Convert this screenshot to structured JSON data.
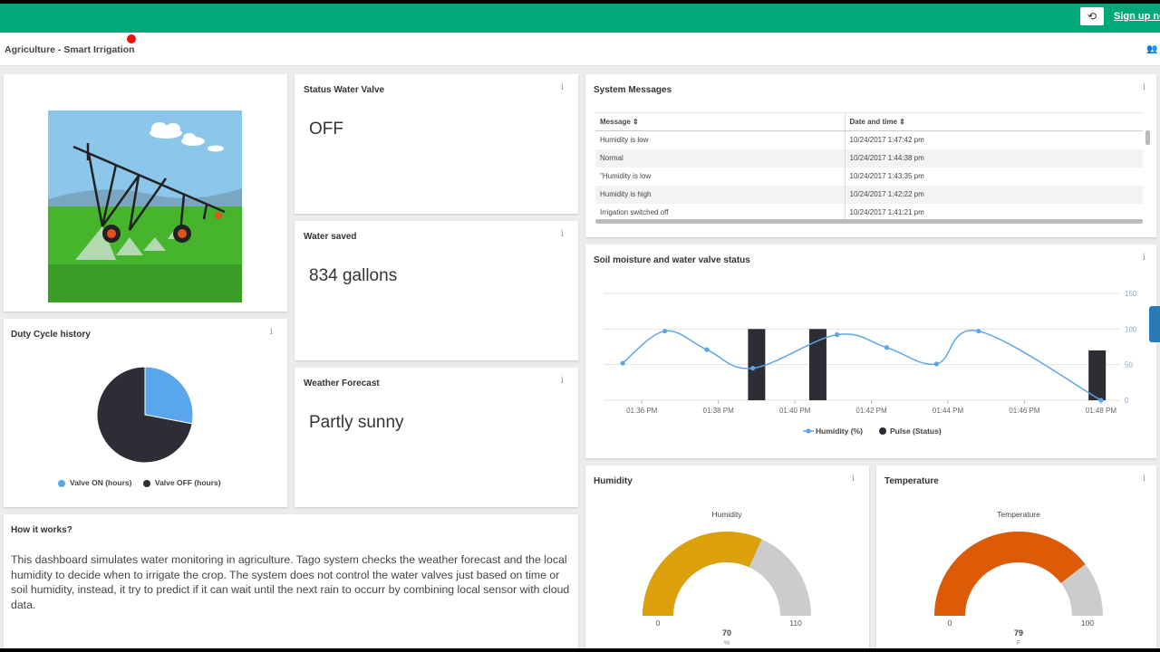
{
  "topbar": {
    "refresh_icon": "refresh-icon",
    "refresh_glyph": "⟲",
    "signup_label": "Sign up no"
  },
  "header": {
    "title": "Agriculture - Smart Irrigation",
    "users_icon": "users-icon",
    "users_glyph": "👥"
  },
  "info_glyph": "i",
  "colors": {
    "accent": "#03a878",
    "valve_on": "#5aa6ec",
    "valve_off": "#2d2d35",
    "humidity_gauge": "#dba00c",
    "temperature_gauge": "#dd5a06",
    "gauge_track": "#cccccc"
  },
  "widgets": {
    "image_card": {
      "image": "center-pivot irrigation system in a green field"
    },
    "status_valve": {
      "title": "Status Water Valve",
      "value": "OFF"
    },
    "water_saved": {
      "title": "Water saved",
      "value": "834 gallons"
    },
    "weather": {
      "title": "Weather Forecast",
      "value": "Partly sunny"
    },
    "system_messages": {
      "title": "System Messages",
      "columns": [
        "Message ⇕",
        "Date and time ⇕"
      ],
      "rows": [
        [
          "Humidity is low",
          "10/24/2017 1:47:42 pm"
        ],
        [
          "Normal",
          "10/24/2017 1:44:38 pm"
        ],
        [
          "\"Humidity is low",
          "10/24/2017 1:43:35 pm"
        ],
        [
          "Humidity is high",
          "10/24/2017 1:42:22 pm"
        ],
        [
          "Irrigation switched off",
          "10/24/2017 1:41:21 pm"
        ]
      ]
    },
    "duty_cycle": {
      "title": "Duty Cycle history",
      "legend": [
        "Valve ON (hours)",
        "Valve OFF (hours)"
      ]
    },
    "soil_chart": {
      "title": "Soil moisture and water valve status"
    },
    "how_it_works": {
      "title": "How it works?",
      "text": "This dashboard simulates water monitoring in agriculture. Tago system checks the weather forecast and the local humidity to decide when to irrigate the crop. The system does not control the water valves just based on time or soil humidity, instead, it try to predict if it can wait until the next rain to occurr by combining local sensor with cloud data."
    },
    "humidity": {
      "title": "Humidity"
    },
    "temperature": {
      "title": "Temperature"
    }
  },
  "chart_data": [
    {
      "type": "pie",
      "categories": [
        "Valve ON (hours)",
        "Valve OFF (hours)"
      ],
      "values": [
        28,
        72
      ]
    },
    {
      "type": "line",
      "title": "",
      "x_ticks": [
        "01:36 PM",
        "01:38 PM",
        "01:40 PM",
        "01:42 PM",
        "01:44 PM",
        "01:46 PM",
        "01:48 PM"
      ],
      "y_ticks": [
        "0",
        "50",
        "100",
        "150"
      ],
      "ylim": [
        0,
        150
      ],
      "x_range_minutes": [
        35,
        48.5
      ],
      "legend_position": "bottom",
      "grid": true,
      "series": [
        {
          "name": "Humidity (%)",
          "type": "spline",
          "x": [
            35.5,
            36.6,
            37.7,
            38.9,
            41.1,
            42.4,
            43.7,
            44.8,
            48
          ],
          "values": [
            52,
            97,
            71,
            45,
            92,
            74,
            51,
            97,
            0
          ]
        },
        {
          "name": "Pulse (Status)",
          "type": "column",
          "x": [
            39,
            40.6,
            47.9
          ],
          "values": [
            100,
            100,
            70
          ]
        }
      ]
    },
    {
      "type": "gauge",
      "title": "Humidity",
      "min": "0",
      "max": "110",
      "value": 70,
      "value_label": "70",
      "unit": "%"
    },
    {
      "type": "gauge",
      "title": "Temperature",
      "min": "0",
      "max": "100",
      "value": 79,
      "value_label": "79",
      "unit": "F"
    }
  ]
}
